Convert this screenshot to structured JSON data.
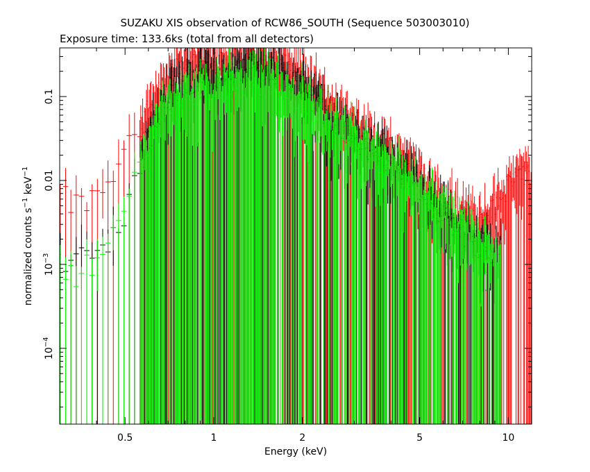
{
  "chart_data": {
    "type": "scatter",
    "title": "SUZAKU XIS observation of RCW86_SOUTH (Sequence 503003010)",
    "subtitle": "Exposure time: 133.6ks (total from all detectors)",
    "xlabel": "Energy (keV)",
    "ylabel": {
      "base": "normalized counts s",
      "exp1": "−1",
      "mid": " keV",
      "exp2": "−1"
    },
    "x_scale": "log",
    "y_scale": "log",
    "xlim": [
      0.3,
      12
    ],
    "ylim": [
      1.25e-05,
      0.38
    ],
    "grid": false,
    "x_ticks": [
      {
        "value": 0.5,
        "label": "0.5"
      },
      {
        "value": 1,
        "label": "1"
      },
      {
        "value": 2,
        "label": "2"
      },
      {
        "value": 5,
        "label": "5"
      },
      {
        "value": 10,
        "label": "10"
      }
    ],
    "y_ticks": [
      {
        "value": 0.1,
        "label": "0.1"
      },
      {
        "value": 0.01,
        "label": "0.01"
      },
      {
        "value": 0.001,
        "label_base": "10",
        "label_exp": "−3"
      },
      {
        "value": 0.0001,
        "label_base": "10",
        "label_exp": "−4"
      }
    ],
    "series": [
      {
        "color": "#000000",
        "points": [
          [
            0.3,
            0.0011
          ],
          [
            0.35,
            0.0012
          ],
          [
            0.4,
            0.0013
          ],
          [
            0.45,
            0.0018
          ],
          [
            0.5,
            0.004
          ],
          [
            0.55,
            0.012
          ],
          [
            0.6,
            0.03
          ],
          [
            0.65,
            0.06
          ],
          [
            0.7,
            0.1
          ],
          [
            0.8,
            0.15
          ],
          [
            0.9,
            0.18
          ],
          [
            1.0,
            0.18
          ],
          [
            1.1,
            0.2
          ],
          [
            1.2,
            0.21
          ],
          [
            1.4,
            0.22
          ],
          [
            1.6,
            0.2
          ],
          [
            1.8,
            0.16
          ],
          [
            2.0,
            0.13
          ],
          [
            2.3,
            0.08
          ],
          [
            2.6,
            0.05
          ],
          [
            3.0,
            0.035
          ],
          [
            3.5,
            0.022
          ],
          [
            4.0,
            0.016
          ],
          [
            4.5,
            0.011
          ],
          [
            5.0,
            0.008
          ],
          [
            6.0,
            0.004
          ],
          [
            7.0,
            0.0025
          ],
          [
            8.0,
            0.0017
          ],
          [
            9.0,
            0.0013
          ]
        ]
      },
      {
        "color": "#ff0000",
        "points": [
          [
            0.3,
            0.006
          ],
          [
            0.35,
            0.005
          ],
          [
            0.4,
            0.006
          ],
          [
            0.45,
            0.012
          ],
          [
            0.5,
            0.02
          ],
          [
            0.55,
            0.04
          ],
          [
            0.6,
            0.07
          ],
          [
            0.65,
            0.11
          ],
          [
            0.7,
            0.16
          ],
          [
            0.8,
            0.25
          ],
          [
            0.9,
            0.3
          ],
          [
            1.0,
            0.28
          ],
          [
            1.1,
            0.3
          ],
          [
            1.2,
            0.32
          ],
          [
            1.4,
            0.3
          ],
          [
            1.6,
            0.27
          ],
          [
            1.8,
            0.22
          ],
          [
            2.0,
            0.18
          ],
          [
            2.3,
            0.11
          ],
          [
            2.6,
            0.07
          ],
          [
            3.0,
            0.05
          ],
          [
            3.5,
            0.03
          ],
          [
            4.0,
            0.022
          ],
          [
            4.5,
            0.016
          ],
          [
            5.0,
            0.012
          ],
          [
            6.0,
            0.006
          ],
          [
            7.0,
            0.004
          ],
          [
            8.0,
            0.003
          ],
          [
            9.0,
            0.005
          ],
          [
            10.0,
            0.008
          ],
          [
            11.0,
            0.012
          ],
          [
            12.0,
            0.01
          ]
        ]
      },
      {
        "color": "#00ff00",
        "points": [
          [
            0.3,
            0.0007
          ],
          [
            0.35,
            0.0008
          ],
          [
            0.4,
            0.001
          ],
          [
            0.45,
            0.002
          ],
          [
            0.5,
            0.005
          ],
          [
            0.55,
            0.012
          ],
          [
            0.6,
            0.03
          ],
          [
            0.65,
            0.05
          ],
          [
            0.7,
            0.08
          ],
          [
            0.8,
            0.1
          ],
          [
            0.9,
            0.12
          ],
          [
            1.0,
            0.12
          ],
          [
            1.1,
            0.14
          ],
          [
            1.2,
            0.15
          ],
          [
            1.4,
            0.15
          ],
          [
            1.6,
            0.13
          ],
          [
            1.8,
            0.11
          ],
          [
            2.0,
            0.09
          ],
          [
            2.3,
            0.06
          ],
          [
            2.6,
            0.04
          ],
          [
            3.0,
            0.03
          ],
          [
            3.5,
            0.02
          ],
          [
            4.0,
            0.015
          ],
          [
            4.5,
            0.01
          ],
          [
            5.0,
            0.008
          ],
          [
            6.0,
            0.004
          ],
          [
            7.0,
            0.0025
          ],
          [
            8.0,
            0.0018
          ],
          [
            9.0,
            0.0012
          ]
        ]
      }
    ]
  }
}
